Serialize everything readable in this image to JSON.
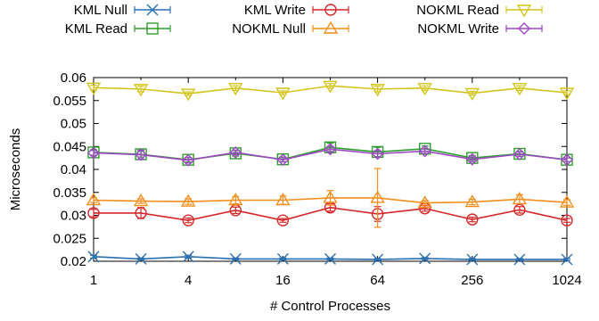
{
  "chart_data": {
    "type": "line",
    "title": "",
    "xlabel": "# Control Processes",
    "ylabel": "Microseconds",
    "x_scale": "log2",
    "x": [
      1,
      2,
      4,
      8,
      16,
      32,
      64,
      128,
      256,
      512,
      1024
    ],
    "x_ticks": [
      "1",
      "4",
      "16",
      "64",
      "256",
      "1024"
    ],
    "x_tick_values": [
      1,
      4,
      16,
      64,
      256,
      1024
    ],
    "ylim": [
      0.02,
      0.06
    ],
    "y_ticks": [
      "0.02",
      "0.025",
      "0.03",
      "0.035",
      "0.04",
      "0.045",
      "0.05",
      "0.055",
      "0.06"
    ],
    "y_tick_values": [
      0.02,
      0.025,
      0.03,
      0.035,
      0.04,
      0.045,
      0.05,
      0.055,
      0.06
    ],
    "legend_position": "top",
    "series": [
      {
        "name": "KML Null",
        "color": "#2a6fb0",
        "marker": "x",
        "values": [
          0.021,
          0.0205,
          0.021,
          0.0205,
          0.0205,
          0.0205,
          0.0204,
          0.0206,
          0.0204,
          0.0204,
          0.0204
        ],
        "err": [
          0.0003,
          0.0002,
          0.0003,
          0.0002,
          0.0002,
          0.0002,
          0.0002,
          0.0002,
          0.0002,
          0.0002,
          0.0002
        ]
      },
      {
        "name": "KML Read",
        "color": "#2e9e2e",
        "marker": "square",
        "values": [
          0.0437,
          0.0433,
          0.0421,
          0.0435,
          0.0422,
          0.0448,
          0.0438,
          0.0445,
          0.0425,
          0.0434,
          0.0421
        ],
        "err": [
          0.0006,
          0.0006,
          0.0005,
          0.0006,
          0.0005,
          0.0009,
          0.001,
          0.0006,
          0.0005,
          0.0005,
          0.0004
        ]
      },
      {
        "name": "KML Write",
        "color": "#d62728",
        "marker": "circle",
        "values": [
          0.0305,
          0.0305,
          0.0289,
          0.0311,
          0.0289,
          0.0317,
          0.0303,
          0.0315,
          0.0291,
          0.0312,
          0.0289
        ],
        "err": [
          0.0008,
          0.0012,
          0.0005,
          0.0007,
          0.0004,
          0.0008,
          0.0016,
          0.0006,
          0.0005,
          0.0007,
          0.0004
        ]
      },
      {
        "name": "NOKML Null",
        "color": "#f28e1c",
        "marker": "triangle",
        "values": [
          0.0333,
          0.0331,
          0.033,
          0.0333,
          0.0333,
          0.0338,
          0.0338,
          0.0327,
          0.0329,
          0.0335,
          0.0328
        ],
        "err": [
          0.0005,
          0.0005,
          0.0006,
          0.0008,
          0.0009,
          0.0016,
          0.0064,
          0.0005,
          0.0006,
          0.001,
          0.0006
        ]
      },
      {
        "name": "NOKML Read",
        "color": "#d4c41a",
        "marker": "triangle-down",
        "values": [
          0.0578,
          0.0575,
          0.0565,
          0.0577,
          0.0567,
          0.0582,
          0.0575,
          0.0577,
          0.0566,
          0.0577,
          0.0567
        ],
        "err": [
          0.0005,
          0.0006,
          0.0004,
          0.0005,
          0.0004,
          0.0005,
          0.0006,
          0.0005,
          0.0004,
          0.0005,
          0.0004
        ]
      },
      {
        "name": "NOKML Write",
        "color": "#9b49c2",
        "marker": "diamond",
        "values": [
          0.0436,
          0.0432,
          0.042,
          0.0437,
          0.0421,
          0.0444,
          0.0434,
          0.044,
          0.0422,
          0.0433,
          0.0421
        ],
        "err": [
          0.0005,
          0.001,
          0.0006,
          0.0005,
          0.0005,
          0.0006,
          0.0007,
          0.0005,
          0.0005,
          0.0005,
          0.0004
        ]
      }
    ]
  }
}
